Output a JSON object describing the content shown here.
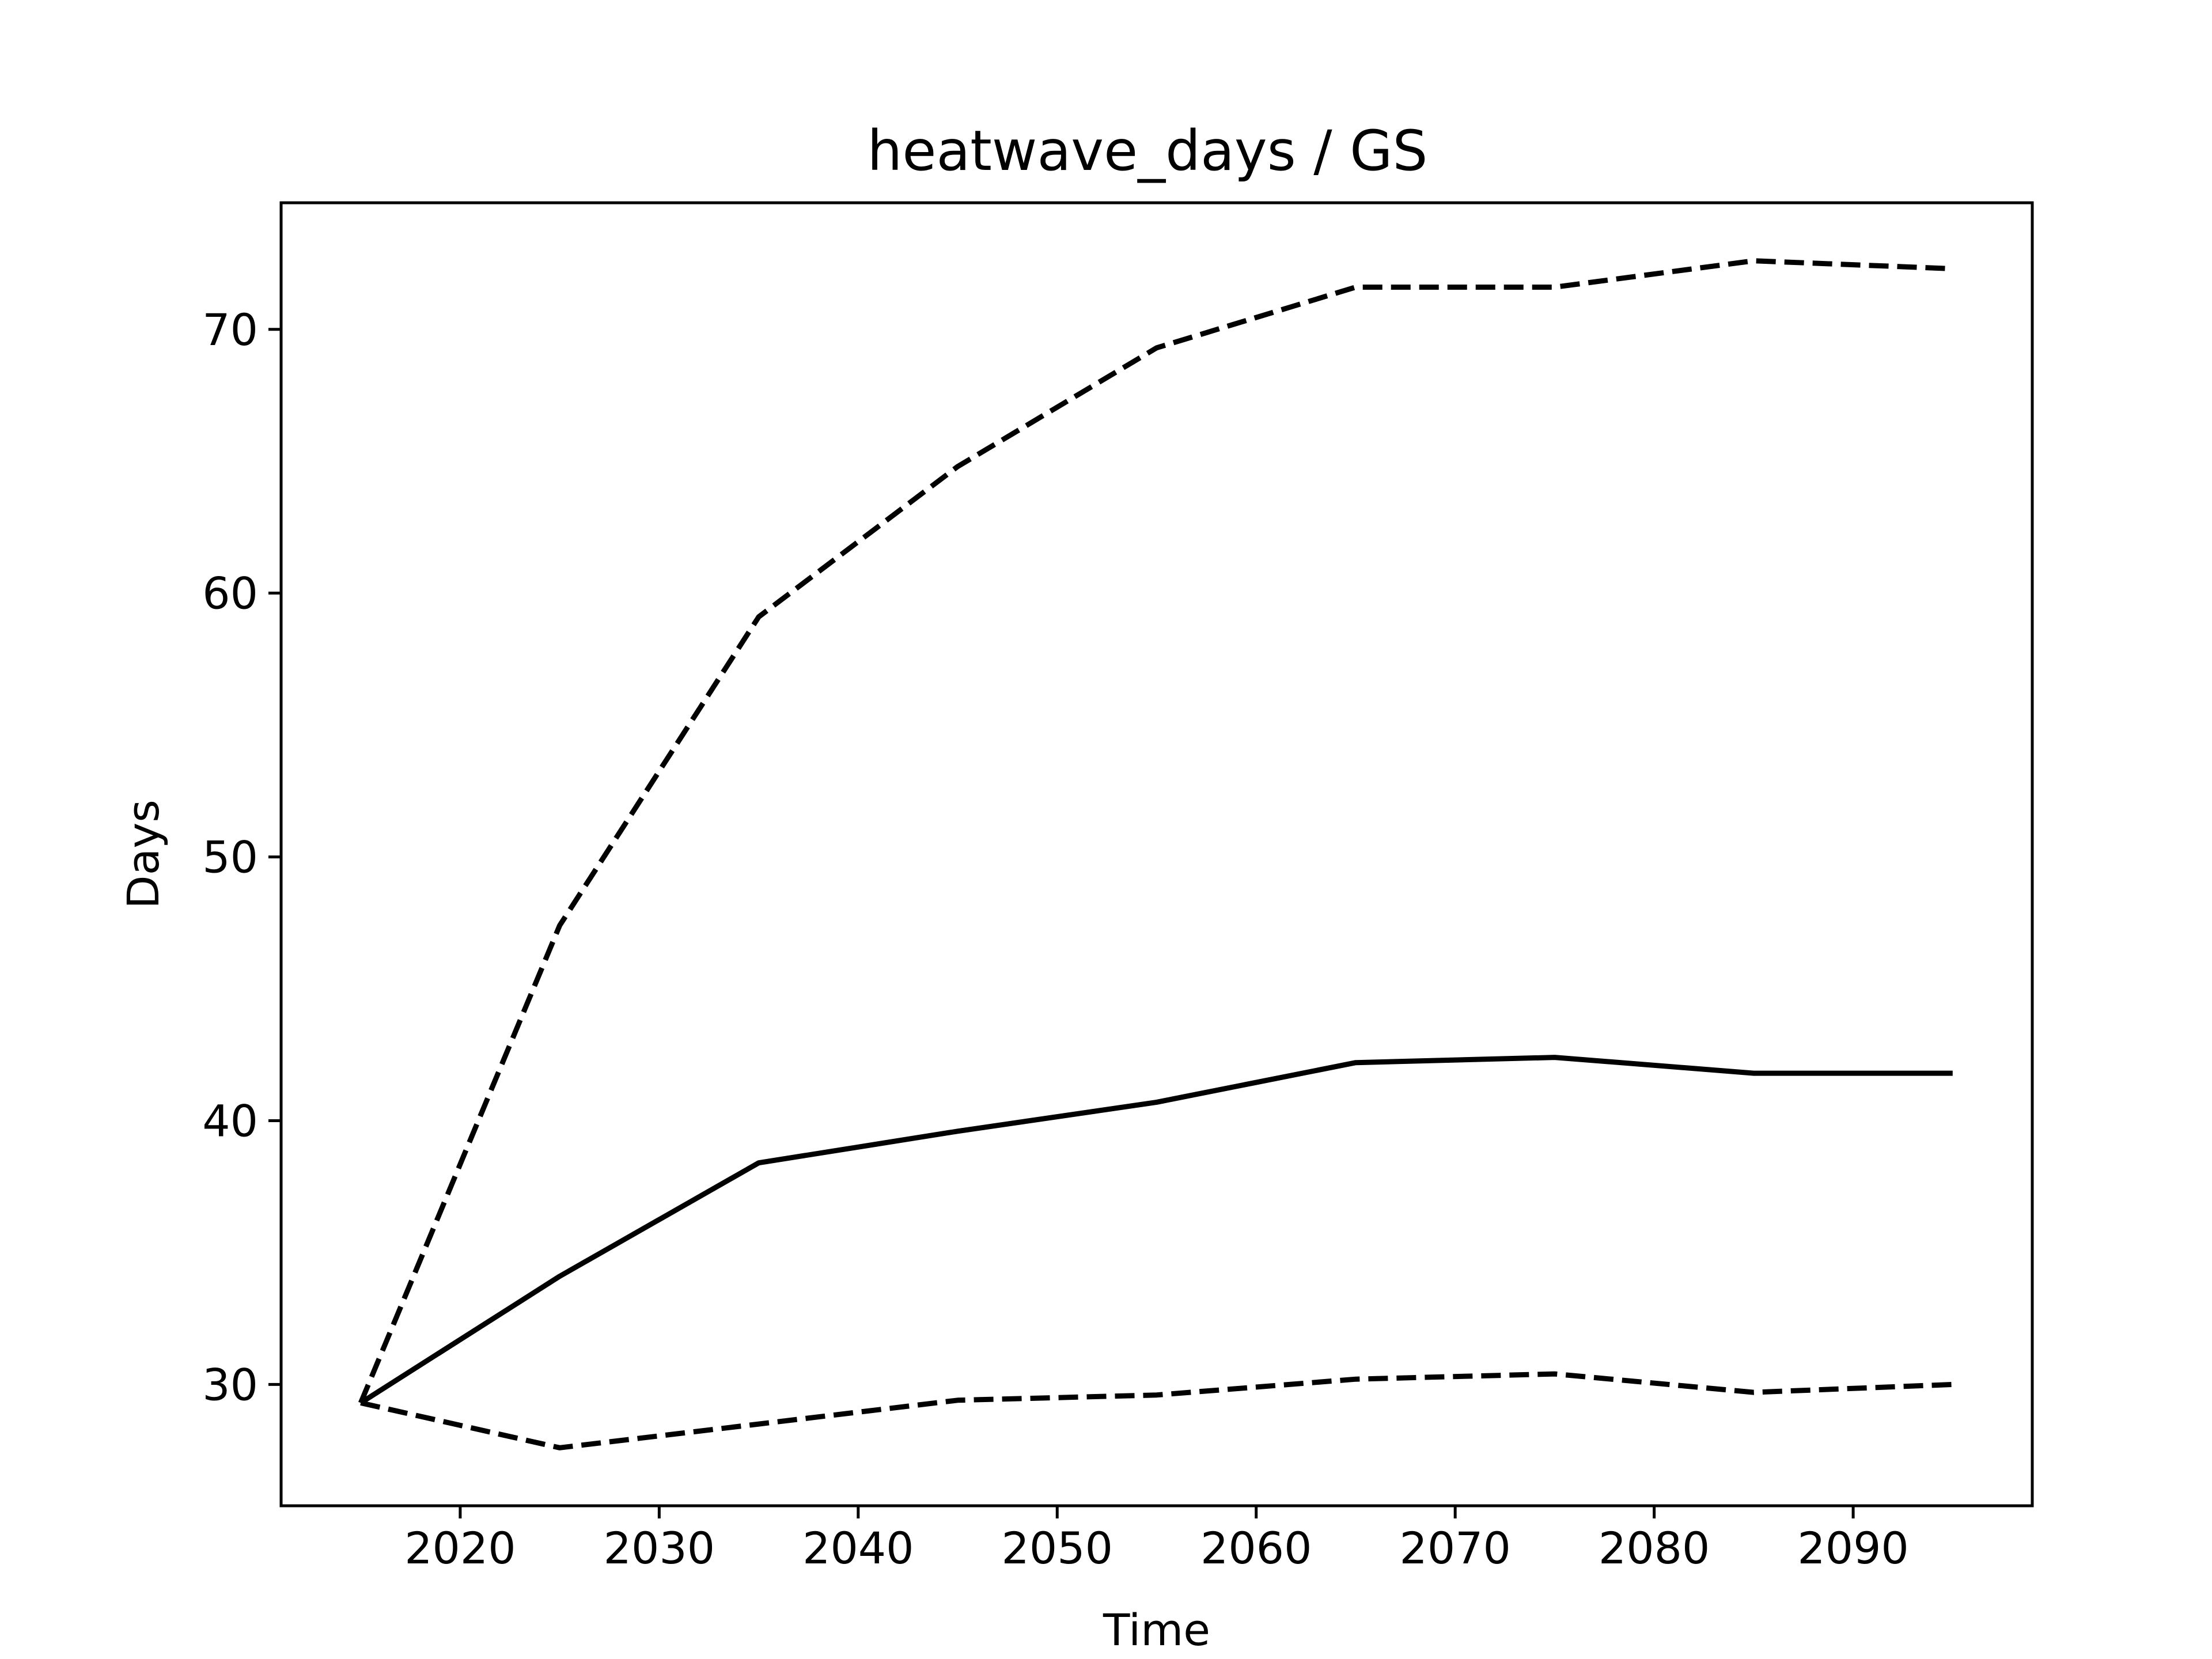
{
  "chart_data": {
    "type": "line",
    "title": "heatwave_days / GS",
    "xlabel": "Time",
    "ylabel": "Days",
    "xlim": [
      2011,
      2099
    ],
    "ylim": [
      25.4,
      74.8
    ],
    "xticks": [
      2020,
      2030,
      2040,
      2050,
      2060,
      2070,
      2080,
      2090
    ],
    "yticks": [
      30,
      40,
      50,
      60,
      70
    ],
    "grid": false,
    "x": [
      2015,
      2025,
      2035,
      2045,
      2055,
      2065,
      2075,
      2085,
      2095
    ],
    "series": [
      {
        "style": "solid",
        "color": "#000000",
        "values": [
          29.3,
          34.1,
          38.4,
          39.6,
          40.7,
          42.2,
          42.4,
          41.8,
          41.8
        ]
      },
      {
        "style": "dashed",
        "color": "#000000",
        "values": [
          29.3,
          47.4,
          59.1,
          64.8,
          69.3,
          71.6,
          71.6,
          72.6,
          72.3
        ]
      },
      {
        "style": "dashed",
        "color": "#000000",
        "values": [
          29.3,
          27.6,
          28.5,
          29.4,
          29.6,
          30.2,
          30.4,
          29.7,
          30.0
        ]
      }
    ]
  }
}
